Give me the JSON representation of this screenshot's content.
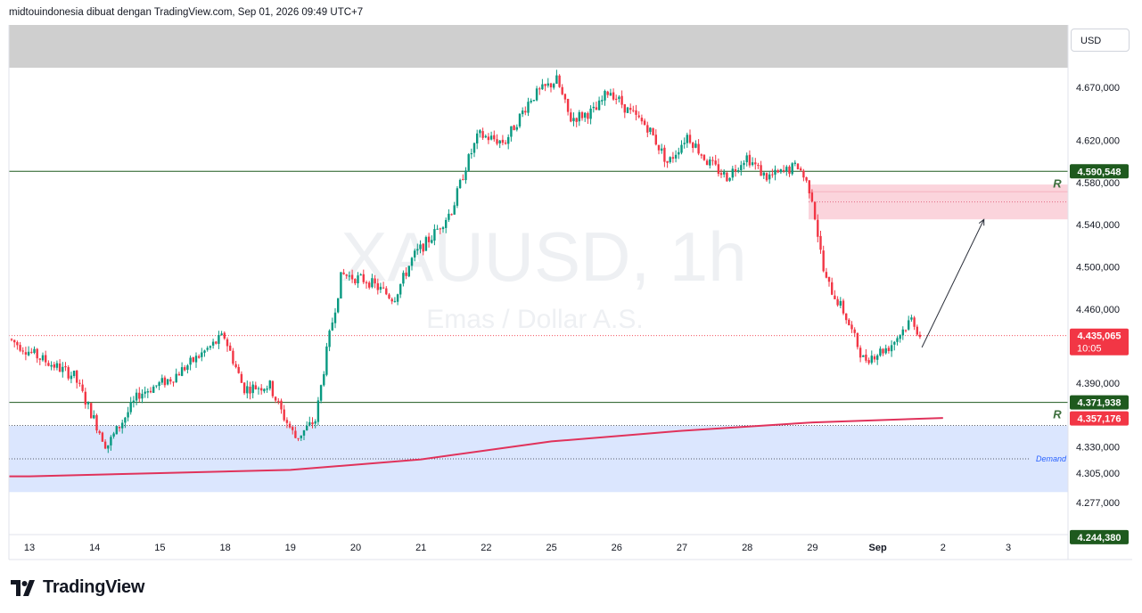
{
  "header": {
    "text": "midtouindonesia dibuat dengan TradingView.com, Sep 01, 2026 09:49 UTC+7"
  },
  "currency": "USD",
  "watermark": {
    "symbol": "XAUUSD, 1h",
    "description": "Emas / Dollar A.S."
  },
  "brand": "TradingView",
  "colors": {
    "up": "#089981",
    "down": "#f23645",
    "ma": "#e0325b",
    "level": "#1e5a1e",
    "demand_fill": "#dbe6fe",
    "resistance_fill": "#fbd4dc",
    "top_band": "#cfcfcf"
  },
  "chart_data": {
    "type": "candlestick",
    "symbol": "XAUUSD",
    "timeframe": "1h",
    "y_ticks": [
      4670000,
      4620000,
      4580000,
      4540000,
      4500000,
      4460000,
      4390000,
      4330000,
      4305000,
      4277000
    ],
    "y_tick_labels": [
      "4.670,000",
      "4.620,000",
      "4.580,000",
      "4.540,000",
      "4.500,000",
      "4.460,000",
      "4.390,000",
      "4.330,000",
      "4.305,000",
      "4.277,000"
    ],
    "x_labels": [
      "13",
      "14",
      "15",
      "18",
      "19",
      "20",
      "21",
      "22",
      "25",
      "26",
      "27",
      "28",
      "29",
      "Sep",
      "2",
      "3"
    ],
    "price_tags": [
      {
        "label": "4.590,548",
        "value": 4590548,
        "kind": "level"
      },
      {
        "label": "4.435,065",
        "sub": "10:05",
        "value": 4435065,
        "kind": "last"
      },
      {
        "label": "4.371,938",
        "value": 4371938,
        "kind": "level"
      },
      {
        "label": "4.357,176",
        "value": 4357176,
        "kind": "ma"
      },
      {
        "label": "4.244,380",
        "value": 4244380,
        "kind": "level"
      }
    ],
    "levels": [
      {
        "value": 4590548,
        "label": "R"
      },
      {
        "value": 4371938,
        "label": "R"
      }
    ],
    "zones": [
      {
        "name": "resistance",
        "label": "",
        "from": 4545000,
        "to": 4578000
      },
      {
        "name": "demand",
        "label": "Demand",
        "from": 4287000,
        "to": 4350000
      }
    ],
    "key_points": [
      {
        "x": 0.0,
        "y": 4432000
      },
      {
        "x": 0.5,
        "y": 4413000
      },
      {
        "x": 1.0,
        "y": 4397000
      },
      {
        "x": 1.5,
        "y": 4330000
      },
      {
        "x": 2.0,
        "y": 4380000
      },
      {
        "x": 2.5,
        "y": 4395000
      },
      {
        "x": 3.0,
        "y": 4420000
      },
      {
        "x": 3.3,
        "y": 4435000
      },
      {
        "x": 3.6,
        "y": 4385000
      },
      {
        "x": 4.0,
        "y": 4388000
      },
      {
        "x": 4.2,
        "y": 4360000
      },
      {
        "x": 4.4,
        "y": 4338000
      },
      {
        "x": 4.7,
        "y": 4355000
      },
      {
        "x": 4.9,
        "y": 4430000
      },
      {
        "x": 5.1,
        "y": 4493000
      },
      {
        "x": 5.5,
        "y": 4487000
      },
      {
        "x": 5.9,
        "y": 4470000
      },
      {
        "x": 6.2,
        "y": 4510000
      },
      {
        "x": 6.5,
        "y": 4530000
      },
      {
        "x": 6.8,
        "y": 4555000
      },
      {
        "x": 7.0,
        "y": 4595000
      },
      {
        "x": 7.2,
        "y": 4625000
      },
      {
        "x": 7.6,
        "y": 4618000
      },
      {
        "x": 8.0,
        "y": 4660000
      },
      {
        "x": 8.4,
        "y": 4677000
      },
      {
        "x": 8.6,
        "y": 4640000
      },
      {
        "x": 9.0,
        "y": 4648000
      },
      {
        "x": 9.2,
        "y": 4668000
      },
      {
        "x": 9.5,
        "y": 4647000
      },
      {
        "x": 9.8,
        "y": 4632000
      },
      {
        "x": 10.1,
        "y": 4598000
      },
      {
        "x": 10.4,
        "y": 4625000
      },
      {
        "x": 10.7,
        "y": 4600000
      },
      {
        "x": 11.0,
        "y": 4585000
      },
      {
        "x": 11.3,
        "y": 4605000
      },
      {
        "x": 11.6,
        "y": 4585000
      },
      {
        "x": 11.8,
        "y": 4588000
      },
      {
        "x": 12.1,
        "y": 4596000
      },
      {
        "x": 12.3,
        "y": 4570000
      },
      {
        "x": 12.5,
        "y": 4490000
      },
      {
        "x": 12.8,
        "y": 4457000
      },
      {
        "x": 13.1,
        "y": 4412000
      },
      {
        "x": 13.5,
        "y": 4425000
      },
      {
        "x": 13.85,
        "y": 4452000
      },
      {
        "x": 13.95,
        "y": 4435065
      }
    ],
    "ma_200": [
      {
        "x": 0.0,
        "y": 4302000
      },
      {
        "x": 2.0,
        "y": 4305000
      },
      {
        "x": 4.0,
        "y": 4308000
      },
      {
        "x": 6.0,
        "y": 4318000
      },
      {
        "x": 8.0,
        "y": 4335000
      },
      {
        "x": 10.0,
        "y": 4345000
      },
      {
        "x": 12.0,
        "y": 4353000
      },
      {
        "x": 14.0,
        "y": 4357176
      }
    ],
    "projection": {
      "from": {
        "x": 13.95,
        "y": 4445000
      },
      "to": {
        "x": 14.9,
        "y": 4545000
      }
    },
    "grid": false,
    "legend": "none"
  }
}
